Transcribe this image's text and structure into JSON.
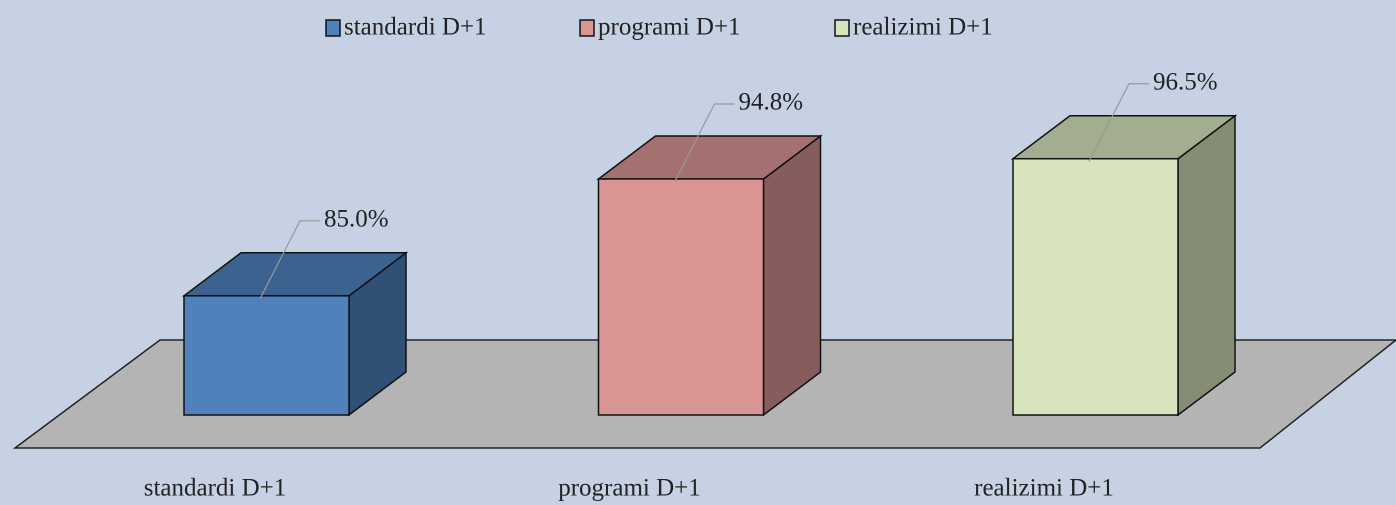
{
  "chart_data": {
    "type": "bar3d",
    "categories": [
      "standardi D+1",
      "programi D+1",
      "realizimi D+1"
    ],
    "values": [
      85.0,
      94.8,
      96.5
    ],
    "value_labels": [
      "85.0%",
      "94.8%",
      "96.5%"
    ],
    "colors": [
      "#4f81bd",
      "#d99594",
      "#d7e4bd"
    ],
    "ylim": [
      75,
      100
    ],
    "legend": "top"
  }
}
